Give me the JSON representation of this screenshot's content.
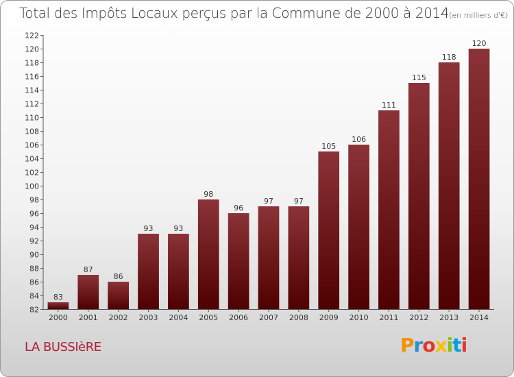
{
  "chart_data": {
    "type": "bar",
    "title": "Total des Impôts Locaux perçus par la Commune de 2000 à 2014",
    "title_unit": "(en milliers d'€)",
    "categories": [
      "2000",
      "2001",
      "2002",
      "2003",
      "2004",
      "2005",
      "2006",
      "2007",
      "2008",
      "2009",
      "2010",
      "2011",
      "2012",
      "2013",
      "2014"
    ],
    "values": [
      83,
      87,
      86,
      93,
      93,
      98,
      96,
      97,
      97,
      105,
      106,
      111,
      115,
      118,
      120
    ],
    "ylim": [
      82,
      122
    ],
    "ytick_step": 2,
    "xlabel": "",
    "ylabel": "",
    "grid": false,
    "bar_color_top": "#8b3338",
    "bar_color_bottom": "#4f0000"
  },
  "commune_name": "LA BUSSIèRE",
  "logo": {
    "letters": [
      "P",
      "r",
      "o",
      "x",
      "i",
      "t",
      "i"
    ],
    "colors": [
      "#f39200",
      "#2a8fd4",
      "#e5352b",
      "#f6c200",
      "#8bbd24",
      "#00a0e0",
      "#e5352b"
    ]
  }
}
